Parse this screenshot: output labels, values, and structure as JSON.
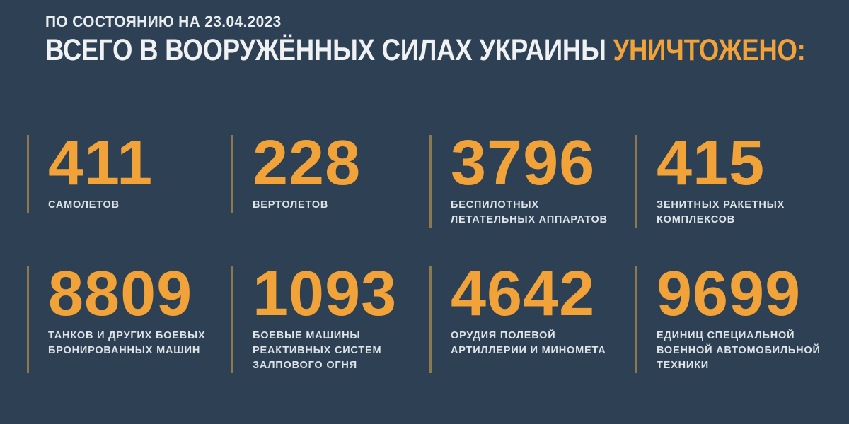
{
  "page": {
    "background_color": "#2e4053",
    "accent_color": "#f1a33a",
    "divider_color": "#8e7852",
    "label_color": "#dde3e7"
  },
  "header": {
    "date_line": "ПО СОСТОЯНИЮ НА 23.04.2023",
    "title_white": "ВСЕГО В ВООРУЖЁННЫХ СИЛАХ УКРАИНЫ ",
    "title_accent": "УНИЧТОЖЕНО:"
  },
  "stats": [
    {
      "value": "411",
      "label": "САМОЛЕТОВ"
    },
    {
      "value": "228",
      "label": "ВЕРТОЛЕТОВ"
    },
    {
      "value": "3796",
      "label": "БЕСПИЛОТНЫХ\nЛЕТАТЕЛЬНЫХ АППАРАТОВ"
    },
    {
      "value": "415",
      "label": "ЗЕНИТНЫХ РАКЕТНЫХ\nКОМПЛЕКСОВ"
    },
    {
      "value": "8809",
      "label": "ТАНКОВ И ДРУГИХ БОЕВЫХ\nБРОНИРОВАННЫХ МАШИН"
    },
    {
      "value": "1093",
      "label": "БОЕВЫЕ МАШИНЫ\nРЕАКТИВНЫХ СИСТЕМ\nЗАЛПОВОГО ОГНЯ"
    },
    {
      "value": "4642",
      "label": "ОРУДИЯ ПОЛЕВОЙ\nАРТИЛЛЕРИИ И МИНОМЕТА"
    },
    {
      "value": "9699",
      "label": "ЕДИНИЦ СПЕЦИАЛЬНОЙ\nВОЕННОЙ АВТОМОБИЛЬНОЙ\nТЕХНИКИ"
    }
  ],
  "chart_data": {
    "type": "table",
    "title": "ВСЕГО В ВООРУЖЁННЫХ СИЛАХ УКРАИНЫ УНИЧТОЖЕНО:",
    "subtitle": "ПО СОСТОЯНИЮ НА 23.04.2023",
    "categories": [
      "САМОЛЕТОВ",
      "ВЕРТОЛЕТОВ",
      "БЕСПИЛОТНЫХ ЛЕТАТЕЛЬНЫХ АППАРАТОВ",
      "ЗЕНИТНЫХ РАКЕТНЫХ КОМПЛЕКСОВ",
      "ТАНКОВ И ДРУГИХ БОЕВЫХ БРОНИРОВАННЫХ МАШИН",
      "БОЕВЫЕ МАШИНЫ РЕАКТИВНЫХ СИСТЕМ ЗАЛПОВОГО ОГНЯ",
      "ОРУДИЯ ПОЛЕВОЙ АРТИЛЛЕРИИ И МИНОМЕТА",
      "ЕДИНИЦ СПЕЦИАЛЬНОЙ ВОЕННОЙ АВТОМОБИЛЬНОЙ ТЕХНИКИ"
    ],
    "values": [
      411,
      228,
      3796,
      415,
      8809,
      1093,
      4642,
      9699
    ],
    "layout": "2 rows x 4 columns of big-number stat cards",
    "legend_position": "none",
    "grid": false
  }
}
